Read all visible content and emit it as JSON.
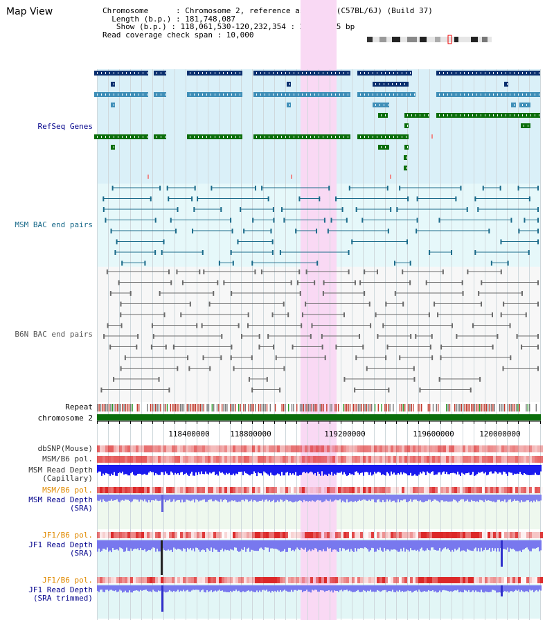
{
  "window_title": "Map View",
  "info": {
    "chromosome": "Chromosome      : Chromosome 2, reference assembly (C57BL/6J) (Build 37)",
    "length": "Length (b.p.) : 181,748,087",
    "show": "Show (b.p.) : 118,061,530-120,232,354 : 2,170,825 bp",
    "coverage": "Read coverage check span : 10,000"
  },
  "tracks": {
    "refseq": "RefSeq Genes",
    "msm_bac": "MSM BAC end pairs",
    "b6n_bac": "B6N BAC end pairs",
    "repeat": "Repeat",
    "chromosome": "chromosome 2",
    "dbsnp": "dbSNP(Mouse)",
    "msm_b6_pol": "MSM/B6 pol.",
    "msm_depth_cap_1": "MSM Read Depth",
    "msm_depth_cap_2": "(Capillary)",
    "msm_b6_pol2": "MSM/B6 pol.",
    "msm_depth_sra_1": "MSM Read Depth",
    "msm_depth_sra_2": "(SRA)",
    "jf1_b6_pol": "JF1/B6 pol.",
    "jf1_depth_sra_1": "JF1 Read Depth",
    "jf1_depth_sra_2": "(SRA)",
    "jf1_b6_pol2": "JF1/B6 pol.",
    "jf1_depth_trim_1": "JF1 Read Depth",
    "jf1_depth_trim_2": "(SRA trimmed)"
  },
  "axis_ticks": [
    "118400000",
    "118800000",
    "119200000",
    "119600000",
    "120000000"
  ],
  "colors": {
    "refseq_dark": "#0a2f6e",
    "refseq_mid": "#3f8fb8",
    "refseq_green": "#0b6e0b",
    "msm_bac": "#1a6a8a",
    "b6n_bac": "#6a6a6a",
    "highlight": "#f9d9f4",
    "label_blue": "#00008b",
    "label_orange": "#e08a00",
    "depth_blue": "#1a1aee"
  }
}
